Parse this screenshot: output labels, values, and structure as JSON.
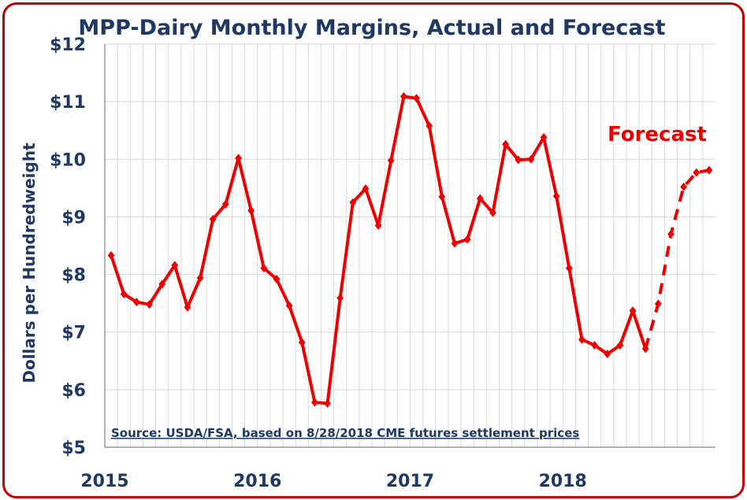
{
  "chart_data": {
    "type": "line",
    "title": "MPP-Dairy Monthly Margins, Actual and Forecast",
    "ylabel": "Dollars per Hundredweight",
    "xlabel": "",
    "ylim": [
      5,
      12
    ],
    "y_ticks": [
      "$5",
      "$6",
      "$7",
      "$8",
      "$9",
      "$10",
      "$11",
      "$12"
    ],
    "x_ticks": [
      "2015",
      "2016",
      "2017",
      "2018"
    ],
    "grid": true,
    "source": "Source:  USDA/FSA, based on 8/28/2018 CME futures settlement prices",
    "annotation": "Forecast",
    "line_color": "#ee0000",
    "series": [
      {
        "style": "solid",
        "x": [
          "Jan 2015",
          "Feb 2015",
          "Mar 2015",
          "Apr 2015",
          "May 2015",
          "Jun 2015",
          "Jul 2015",
          "Aug 2015",
          "Sep 2015",
          "Oct 2015",
          "Nov 2015",
          "Dec 2015",
          "Jan 2016",
          "Feb 2016",
          "Mar 2016",
          "Apr 2016",
          "May 2016",
          "Jun 2016",
          "Jul 2016",
          "Aug 2016",
          "Sep 2016",
          "Oct 2016",
          "Nov 2016",
          "Dec 2016",
          "Jan 2017",
          "Feb 2017",
          "Mar 2017",
          "Apr 2017",
          "May 2017",
          "Jun 2017",
          "Jul 2017",
          "Aug 2017",
          "Sep 2017",
          "Oct 2017",
          "Nov 2017",
          "Dec 2017",
          "Jan 2018",
          "Feb 2018",
          "Mar 2018",
          "Apr 2018",
          "May 2018",
          "Jun 2018",
          "Jul 2018"
        ],
        "values": [
          8.33,
          7.66,
          7.52,
          7.48,
          7.83,
          8.16,
          7.43,
          7.94,
          8.96,
          9.22,
          10.02,
          9.11,
          8.11,
          7.92,
          7.46,
          6.82,
          5.78,
          5.76,
          7.59,
          9.25,
          9.49,
          8.85,
          9.98,
          11.09,
          11.06,
          10.58,
          9.35,
          8.54,
          8.61,
          9.32,
          9.07,
          10.26,
          9.99,
          10.0,
          10.38,
          9.36,
          8.11,
          6.87,
          6.77,
          6.62,
          6.77,
          7.37,
          6.71
        ]
      },
      {
        "style": "dashed",
        "x": [
          "Jul 2018",
          "Aug 2018",
          "Sep 2018",
          "Oct 2018",
          "Nov 2018",
          "Dec 2018"
        ],
        "values": [
          6.71,
          7.49,
          8.7,
          9.52,
          9.77,
          9.81
        ]
      }
    ]
  }
}
